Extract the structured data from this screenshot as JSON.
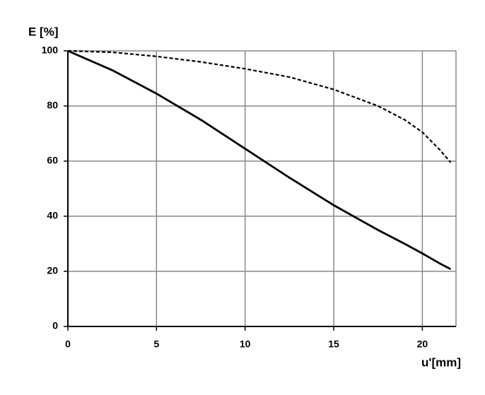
{
  "chart_data": {
    "type": "line",
    "y_label": "E [%]",
    "x_label": "u'[mm]",
    "x": [
      0,
      2.5,
      5,
      7.5,
      10,
      12.5,
      15,
      17.5,
      19,
      20,
      21,
      21.6
    ],
    "series": [
      {
        "color": "#000000",
        "line_style": "solid",
        "values": [
          100,
          93,
          84.5,
          75,
          64.5,
          54,
          44,
          35,
          30,
          26.5,
          22.8,
          20.8
        ]
      },
      {
        "color": "#000000",
        "line_style": "dashed",
        "values": [
          100,
          99.5,
          98,
          96,
          93.5,
          90.5,
          86,
          80,
          75,
          70.5,
          64,
          59.5
        ]
      }
    ],
    "xlim": [
      0,
      21.9
    ],
    "xticks": [
      0,
      5,
      10,
      15,
      20
    ],
    "ylim": [
      0,
      100
    ],
    "yticks": [
      0,
      20,
      40,
      60,
      80,
      100
    ],
    "grid": true
  }
}
